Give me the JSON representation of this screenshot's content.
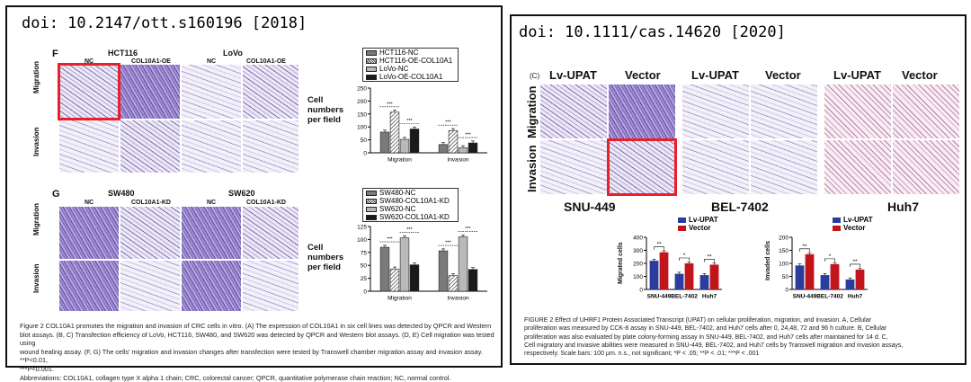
{
  "panel_left": {
    "doi": "doi: 10.2147/ott.s160196 [2018]",
    "part_f": {
      "letter": "F",
      "cells": [
        "HCT116",
        "LoVo"
      ],
      "columns": [
        "NC",
        "COL10A1-OE",
        "NC",
        "COL10A1-OE"
      ],
      "rows": [
        "Migration",
        "Invasion"
      ],
      "legend": [
        "HCT116-NC",
        "HCT116-OE-COL10A1",
        "LoVo-NC",
        "LoVo-OE-COL10A1"
      ],
      "y_label": "Cell numbers per field",
      "sig": [
        "***",
        "***",
        "***",
        "***"
      ]
    },
    "part_g": {
      "letter": "G",
      "cells": [
        "SW480",
        "SW620"
      ],
      "columns": [
        "NC",
        "COL10A1-KD",
        "NC",
        "COL10A1-KD"
      ],
      "rows": [
        "Migration",
        "Invasion"
      ],
      "legend": [
        "SW480-NC",
        "SW480-COL10A1-KD",
        "SW620-NC",
        "SW620-COL10A1-KD"
      ],
      "y_label": "Cell numbers per field",
      "sig": [
        "***",
        "***",
        "***",
        "***"
      ]
    },
    "caption_lines": [
      "Figure 2 COL10A1 promotes the migration and invasion of CRC cells in vitro. (A) The expression of COL10A1 in six cell lines was detected by QPCR and Western",
      "blot assays. (B, C) Transfection efficiency of LoVo, HCT116, SW480, and SW620 was detected by QPCR and Western blot assays. (D, E) Cell migration was tested using",
      "wound healing assay. (F, G) The cells' migration and invasion changes after transfection were tested by Transwell chamber migration assay and invasion assay. **P<0.01,",
      "***P<0.001.",
      "Abbreviations: COL10A1, collagen type X alpha 1 chain; CRC, colorectal cancer; QPCR, quantitative polymerase chain reaction; NC, normal control."
    ]
  },
  "panel_right": {
    "doi": "doi: 10.1111/cas.14620 [2020]",
    "letter": "(C)",
    "columns": [
      "Lv-UPAT",
      "Vector",
      "Lv-UPAT",
      "Vector",
      "Lv-UPAT",
      "Vector"
    ],
    "rows": [
      "Migration",
      "Invasion"
    ],
    "cell_lines": [
      "SNU-449",
      "BEL-7402",
      "Huh7"
    ],
    "legend": [
      "Lv-UPAT",
      "Vector"
    ],
    "y_labels": [
      "Migrated cells",
      "Invaded cells"
    ],
    "sig_left": [
      "**",
      "*",
      "**"
    ],
    "sig_right": [
      "**",
      "*",
      "**"
    ],
    "caption_lines": [
      "FIGURE 2   Effect of UHRF1 Protein Associated Transcript (UPAT) on cellular proliferation, migration, and invasion. A, Cellular",
      "proliferation was measured by CCK-8 assay in SNU-449, BEL-7402, and Huh7 cells after 0, 24,48, 72 and 96 h culture. B, Cellular",
      "proliferation was also evaluated by plate colony-forming assay in SNU-449, BEL-7402, and Huh7 cells after maintained for 14 d. C,",
      "Cell migratory and invasive abilities were measured in SNU-449, BEL-7402, and Huh7 cells by Transwell migration and invasion assays,",
      "respectively. Scale bars: 100 μm. n.s., not significant; *P < .05; **P < .01; ***P < .001"
    ]
  },
  "chart_data": [
    {
      "type": "bar",
      "categories": [
        "Migration",
        "Invasion"
      ],
      "series": [
        {
          "name": "HCT116-NC",
          "values": [
            80,
            32
          ]
        },
        {
          "name": "HCT116-OE-COL10A1",
          "values": [
            157,
            86
          ]
        },
        {
          "name": "LoVo-NC",
          "values": [
            52,
            20
          ]
        },
        {
          "name": "LoVo-OE-COL10A1",
          "values": [
            92,
            38
          ]
        }
      ],
      "ylim": [
        0,
        250
      ],
      "yticks": [
        0,
        50,
        100,
        150,
        200,
        250
      ],
      "ylabel": "Cell numbers per field",
      "colors": [
        "#7a7a7a",
        "#e8e8e8",
        "#b9b9b9",
        "#1a1a1a"
      ]
    },
    {
      "type": "bar",
      "categories": [
        "Migration",
        "Invasion"
      ],
      "series": [
        {
          "name": "SW480-NC",
          "values": [
            85,
            78
          ]
        },
        {
          "name": "SW480-COL10A1-KD",
          "values": [
            43,
            30
          ]
        },
        {
          "name": "SW620-NC",
          "values": [
            103,
            105
          ]
        },
        {
          "name": "SW620-COL10A1-KD",
          "values": [
            51,
            42
          ]
        }
      ],
      "ylim": [
        0,
        125
      ],
      "yticks": [
        0,
        25,
        50,
        75,
        100,
        125
      ],
      "ylabel": "Cell numbers per field",
      "colors": [
        "#7a7a7a",
        "#e8e8e8",
        "#b9b9b9",
        "#1a1a1a"
      ]
    },
    {
      "type": "bar",
      "categories": [
        "SNU-449",
        "BEL-7402",
        "Huh7"
      ],
      "series": [
        {
          "name": "Lv-UPAT",
          "values": [
            220,
            120,
            110
          ]
        },
        {
          "name": "Vector",
          "values": [
            285,
            200,
            190
          ]
        }
      ],
      "ylim": [
        0,
        400
      ],
      "yticks": [
        0,
        100,
        200,
        300,
        400
      ],
      "ylabel": "Migrated cells",
      "colors": [
        "#2a3d9e",
        "#c0161b"
      ]
    },
    {
      "type": "bar",
      "categories": [
        "SNU-449",
        "BEL-7402",
        "Huh7"
      ],
      "series": [
        {
          "name": "Lv-UPAT",
          "values": [
            92,
            55,
            38
          ]
        },
        {
          "name": "Vector",
          "values": [
            135,
            97,
            76
          ]
        }
      ],
      "ylim": [
        0,
        200
      ],
      "yticks": [
        0,
        50,
        100,
        150,
        200
      ],
      "ylabel": "Invaded cells",
      "colors": [
        "#2a3d9e",
        "#c0161b"
      ]
    }
  ]
}
